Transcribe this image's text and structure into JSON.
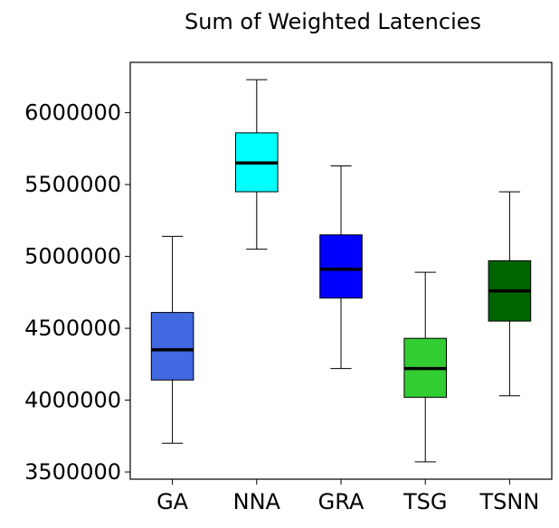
{
  "chart_data": {
    "type": "boxplot",
    "title": "Sum of Weighted Latencies",
    "xlabel": "",
    "ylabel": "",
    "categories": [
      "GA",
      "NNA",
      "GRA",
      "TSG",
      "TSNN"
    ],
    "ylim": [
      3450000,
      6350000
    ],
    "yticks": [
      3500000,
      4000000,
      4500000,
      5000000,
      5500000,
      6000000
    ],
    "ytick_labels": [
      "3500000",
      "4000000",
      "4500000",
      "5000000",
      "5500000",
      "6000000"
    ],
    "grid": false,
    "boxes": [
      {
        "name": "GA",
        "whisker_low": 3700000,
        "q1": 4140000,
        "median": 4350000,
        "q3": 4610000,
        "whisker_high": 5140000,
        "color": "#4169E1"
      },
      {
        "name": "NNA",
        "whisker_low": 5050000,
        "q1": 5450000,
        "median": 5650000,
        "q3": 5860000,
        "whisker_high": 6230000,
        "color": "#00FFFF"
      },
      {
        "name": "GRA",
        "whisker_low": 4220000,
        "q1": 4710000,
        "median": 4910000,
        "q3": 5150000,
        "whisker_high": 5630000,
        "color": "#0000FF"
      },
      {
        "name": "TSG",
        "whisker_low": 3570000,
        "q1": 4020000,
        "median": 4220000,
        "q3": 4430000,
        "whisker_high": 4890000,
        "color": "#32CD32"
      },
      {
        "name": "TSNN",
        "whisker_low": 4030000,
        "q1": 4550000,
        "median": 4760000,
        "q3": 4970000,
        "whisker_high": 5450000,
        "color": "#006400"
      }
    ]
  }
}
